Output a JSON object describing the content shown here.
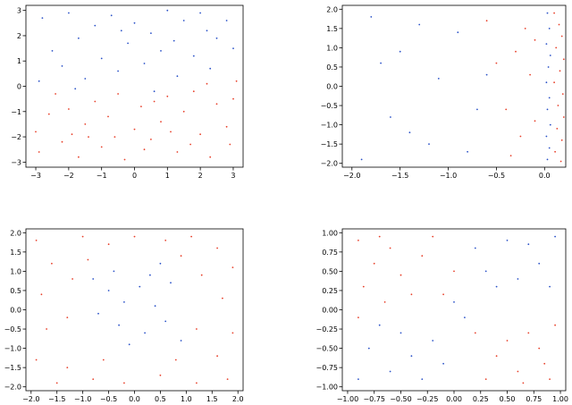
{
  "figure": {
    "background": "#ffffff"
  },
  "colors": {
    "red": "#e8402a",
    "blue": "#2a52c8",
    "axis": "#000000"
  },
  "chart_data": [
    {
      "type": "scatter",
      "xlim": [
        -3.3,
        3.3
      ],
      "ylim": [
        -3.2,
        3.2
      ],
      "xticks": [
        -3,
        -2,
        -1,
        0,
        1,
        2,
        3
      ],
      "yticks": [
        -3,
        -2,
        -1,
        0,
        1,
        2,
        3
      ],
      "tick_labels": {
        "x": [
          "−3",
          "−2",
          "−1",
          "0",
          "1",
          "2",
          "3"
        ],
        "y": [
          "−3",
          "−2",
          "−1",
          "0",
          "1",
          "2",
          "3"
        ]
      },
      "grid": false,
      "series": [
        {
          "color": "#e8402a",
          "points": [
            [
              -2.9,
              -2.6
            ],
            [
              -2.6,
              -1.1
            ],
            [
              -2.2,
              -2.2
            ],
            [
              -2.0,
              -0.9
            ],
            [
              -1.7,
              -2.8
            ],
            [
              -1.5,
              -1.5
            ],
            [
              -1.2,
              -0.6
            ],
            [
              -1.0,
              -2.4
            ],
            [
              -0.8,
              -1.2
            ],
            [
              -0.5,
              -0.3
            ],
            [
              -0.3,
              -2.9
            ],
            [
              0.0,
              -1.7
            ],
            [
              0.2,
              -0.8
            ],
            [
              0.5,
              -2.1
            ],
            [
              0.8,
              -1.4
            ],
            [
              1.0,
              -0.4
            ],
            [
              1.3,
              -2.6
            ],
            [
              1.5,
              -1.0
            ],
            [
              1.8,
              -0.2
            ],
            [
              2.0,
              -1.9
            ],
            [
              2.3,
              -2.8
            ],
            [
              2.5,
              -0.7
            ],
            [
              2.8,
              -1.6
            ],
            [
              3.0,
              -0.5
            ],
            [
              3.1,
              0.2
            ],
            [
              2.9,
              -2.3
            ],
            [
              -3.0,
              -1.8
            ],
            [
              -2.4,
              -0.3
            ],
            [
              -1.9,
              -1.9
            ],
            [
              -0.6,
              -2.0
            ],
            [
              0.6,
              -0.6
            ],
            [
              1.1,
              -1.8
            ],
            [
              1.7,
              -2.3
            ],
            [
              2.2,
              0.1
            ],
            [
              -1.4,
              -2.0
            ],
            [
              0.3,
              -2.5
            ]
          ]
        },
        {
          "color": "#2a52c8",
          "points": [
            [
              -2.8,
              2.7
            ],
            [
              -2.5,
              1.4
            ],
            [
              -2.2,
              0.8
            ],
            [
              -2.0,
              2.9
            ],
            [
              -1.7,
              1.9
            ],
            [
              -1.5,
              0.3
            ],
            [
              -1.2,
              2.4
            ],
            [
              -1.0,
              1.1
            ],
            [
              -0.7,
              2.8
            ],
            [
              -0.5,
              0.6
            ],
            [
              -0.2,
              1.7
            ],
            [
              0.0,
              2.5
            ],
            [
              0.3,
              0.9
            ],
            [
              0.5,
              2.1
            ],
            [
              0.8,
              1.4
            ],
            [
              1.0,
              3.0
            ],
            [
              1.3,
              0.4
            ],
            [
              1.5,
              2.6
            ],
            [
              1.8,
              1.2
            ],
            [
              2.0,
              2.9
            ],
            [
              2.3,
              0.7
            ],
            [
              2.5,
              1.9
            ],
            [
              2.8,
              2.6
            ],
            [
              3.0,
              1.5
            ],
            [
              -2.9,
              0.2
            ],
            [
              -1.8,
              -0.1
            ],
            [
              0.6,
              -0.2
            ],
            [
              1.2,
              1.8
            ],
            [
              -0.4,
              2.2
            ],
            [
              2.2,
              2.2
            ]
          ]
        }
      ]
    },
    {
      "type": "scatter",
      "xlim": [
        -2.1,
        0.22
      ],
      "ylim": [
        -2.1,
        2.1
      ],
      "xticks": [
        -2.0,
        -1.5,
        -1.0,
        -0.5,
        0.0
      ],
      "yticks": [
        -2.0,
        -1.5,
        -1.0,
        -0.5,
        0.0,
        0.5,
        1.0,
        1.5,
        2.0
      ],
      "tick_labels": {
        "x": [
          "−2.0",
          "−1.5",
          "−1.0",
          "−0.5",
          "0.0"
        ],
        "y": [
          "−2.0",
          "−1.5",
          "−1.0",
          "−0.5",
          "0.0",
          "0.5",
          "1.0",
          "1.5",
          "2.0"
        ]
      },
      "grid": false,
      "series": [
        {
          "color": "#e8402a",
          "points": [
            [
              0.1,
              1.9
            ],
            [
              0.15,
              1.6
            ],
            [
              0.18,
              1.3
            ],
            [
              0.12,
              1.0
            ],
            [
              0.2,
              0.7
            ],
            [
              0.16,
              0.4
            ],
            [
              0.1,
              0.1
            ],
            [
              0.19,
              -0.2
            ],
            [
              0.14,
              -0.5
            ],
            [
              0.2,
              -0.8
            ],
            [
              0.13,
              -1.1
            ],
            [
              0.18,
              -1.4
            ],
            [
              0.11,
              -1.7
            ],
            [
              0.17,
              -1.95
            ],
            [
              -0.2,
              1.5
            ],
            [
              -0.3,
              0.9
            ],
            [
              -0.1,
              1.2
            ],
            [
              -0.4,
              -0.6
            ],
            [
              -0.25,
              -1.3
            ],
            [
              -0.6,
              1.7
            ],
            [
              -0.15,
              0.3
            ],
            [
              -0.35,
              -1.8
            ],
            [
              -0.5,
              0.6
            ],
            [
              -0.1,
              -0.9
            ]
          ]
        },
        {
          "color": "#2a52c8",
          "points": [
            [
              0.03,
              1.9
            ],
            [
              0.05,
              1.5
            ],
            [
              0.02,
              1.1
            ],
            [
              0.06,
              0.8
            ],
            [
              0.04,
              0.5
            ],
            [
              0.02,
              0.1
            ],
            [
              0.05,
              -0.3
            ],
            [
              0.03,
              -0.6
            ],
            [
              0.06,
              -1.0
            ],
            [
              0.02,
              -1.3
            ],
            [
              0.05,
              -1.6
            ],
            [
              0.03,
              -1.9
            ],
            [
              -1.8,
              1.8
            ],
            [
              -1.5,
              0.9
            ],
            [
              -1.2,
              -1.5
            ],
            [
              -1.6,
              -0.8
            ],
            [
              -0.9,
              1.4
            ],
            [
              -1.1,
              0.2
            ],
            [
              -0.7,
              -0.6
            ],
            [
              -1.9,
              -1.9
            ],
            [
              -1.4,
              -1.2
            ],
            [
              -0.8,
              -1.7
            ],
            [
              -1.7,
              0.6
            ],
            [
              -1.3,
              1.6
            ],
            [
              -0.6,
              0.3
            ]
          ]
        }
      ]
    },
    {
      "type": "scatter",
      "xlim": [
        -2.1,
        2.1
      ],
      "ylim": [
        -2.1,
        2.1
      ],
      "xticks": [
        -2.0,
        -1.5,
        -1.0,
        -0.5,
        0.0,
        0.5,
        1.0,
        1.5,
        2.0
      ],
      "yticks": [
        -2.0,
        -1.5,
        -1.0,
        -0.5,
        0.0,
        0.5,
        1.0,
        1.5,
        2.0
      ],
      "tick_labels": {
        "x": [
          "−2.0",
          "−1.5",
          "−1.0",
          "−0.5",
          "0.0",
          "0.5",
          "1.0",
          "1.5",
          "2.0"
        ],
        "y": [
          "−2.0",
          "−1.5",
          "−1.0",
          "−0.5",
          "0.0",
          "0.5",
          "1.0",
          "1.5",
          "2.0"
        ]
      },
      "grid": false,
      "series": [
        {
          "color": "#e8402a",
          "points": [
            [
              -1.9,
              1.8
            ],
            [
              -1.6,
              1.2
            ],
            [
              -1.8,
              0.4
            ],
            [
              -1.7,
              -0.5
            ],
            [
              -1.9,
              -1.3
            ],
            [
              -1.5,
              -1.9
            ],
            [
              -1.0,
              1.9
            ],
            [
              -0.5,
              1.7
            ],
            [
              0.0,
              1.9
            ],
            [
              0.6,
              1.8
            ],
            [
              1.1,
              1.9
            ],
            [
              1.6,
              1.6
            ],
            [
              1.9,
              1.1
            ],
            [
              1.7,
              0.3
            ],
            [
              1.9,
              -0.6
            ],
            [
              1.6,
              -1.2
            ],
            [
              1.8,
              -1.8
            ],
            [
              1.2,
              -1.9
            ],
            [
              0.5,
              -1.7
            ],
            [
              -0.2,
              -1.9
            ],
            [
              -0.8,
              -1.8
            ],
            [
              -1.3,
              -1.5
            ],
            [
              -1.2,
              0.8
            ],
            [
              -1.3,
              -0.2
            ],
            [
              1.3,
              0.9
            ],
            [
              1.2,
              -0.5
            ],
            [
              -0.6,
              -1.3
            ],
            [
              0.8,
              -1.3
            ],
            [
              -0.9,
              1.3
            ],
            [
              0.9,
              1.4
            ]
          ]
        },
        {
          "color": "#2a52c8",
          "points": [
            [
              -0.5,
              0.5
            ],
            [
              -0.2,
              0.2
            ],
            [
              0.1,
              0.6
            ],
            [
              0.4,
              0.1
            ],
            [
              0.6,
              -0.3
            ],
            [
              0.2,
              -0.6
            ],
            [
              -0.3,
              -0.4
            ],
            [
              -0.7,
              -0.1
            ],
            [
              0.7,
              0.7
            ],
            [
              -0.1,
              -0.9
            ],
            [
              0.3,
              0.9
            ],
            [
              -0.8,
              0.8
            ],
            [
              0.9,
              -0.8
            ],
            [
              -0.4,
              1.0
            ],
            [
              0.5,
              1.2
            ]
          ]
        }
      ]
    },
    {
      "type": "scatter",
      "xlim": [
        -1.05,
        1.05
      ],
      "ylim": [
        -1.05,
        1.05
      ],
      "xticks": [
        -1.0,
        -0.75,
        -0.5,
        -0.25,
        0.0,
        0.25,
        0.5,
        0.75,
        1.0
      ],
      "yticks": [
        -1.0,
        -0.75,
        -0.5,
        -0.25,
        0.0,
        0.25,
        0.5,
        0.75,
        1.0
      ],
      "tick_labels": {
        "x": [
          "−1.00",
          "−0.75",
          "−0.50",
          "−0.25",
          "0.00",
          "0.25",
          "0.50",
          "0.75",
          "1.00"
        ],
        "y": [
          "−1.00",
          "−0.75",
          "−0.50",
          "−0.25",
          "0.00",
          "0.25",
          "0.50",
          "0.75",
          "1.00"
        ]
      },
      "grid": false,
      "series": [
        {
          "color": "#e8402a",
          "points": [
            [
              -0.9,
              0.9
            ],
            [
              -0.75,
              0.6
            ],
            [
              -0.6,
              0.8
            ],
            [
              -0.85,
              0.3
            ],
            [
              -0.5,
              0.45
            ],
            [
              -0.3,
              0.7
            ],
            [
              -0.65,
              0.1
            ],
            [
              -0.4,
              0.2
            ],
            [
              -0.2,
              0.95
            ],
            [
              -0.9,
              -0.1
            ],
            [
              0.0,
              0.5
            ],
            [
              -0.1,
              0.2
            ],
            [
              0.4,
              -0.6
            ],
            [
              0.6,
              -0.8
            ],
            [
              0.8,
              -0.5
            ],
            [
              0.9,
              -0.9
            ],
            [
              0.7,
              -0.3
            ],
            [
              0.5,
              -0.4
            ],
            [
              0.95,
              -0.2
            ],
            [
              0.3,
              -0.9
            ],
            [
              0.85,
              -0.7
            ],
            [
              0.2,
              -0.3
            ],
            [
              -0.7,
              0.95
            ],
            [
              0.65,
              -0.95
            ]
          ]
        },
        {
          "color": "#2a52c8",
          "points": [
            [
              0.2,
              0.8
            ],
            [
              0.5,
              0.9
            ],
            [
              0.8,
              0.6
            ],
            [
              0.6,
              0.4
            ],
            [
              0.9,
              0.3
            ],
            [
              0.4,
              0.3
            ],
            [
              0.7,
              0.85
            ],
            [
              0.3,
              0.5
            ],
            [
              -0.8,
              -0.5
            ],
            [
              -0.6,
              -0.8
            ],
            [
              -0.4,
              -0.6
            ],
            [
              -0.9,
              -0.9
            ],
            [
              -0.2,
              -0.4
            ],
            [
              -0.5,
              -0.3
            ],
            [
              -0.7,
              -0.2
            ],
            [
              0.1,
              -0.1
            ],
            [
              -0.3,
              -0.9
            ],
            [
              0.95,
              0.95
            ],
            [
              0.0,
              0.1
            ],
            [
              -0.1,
              -0.7
            ]
          ]
        }
      ]
    }
  ]
}
